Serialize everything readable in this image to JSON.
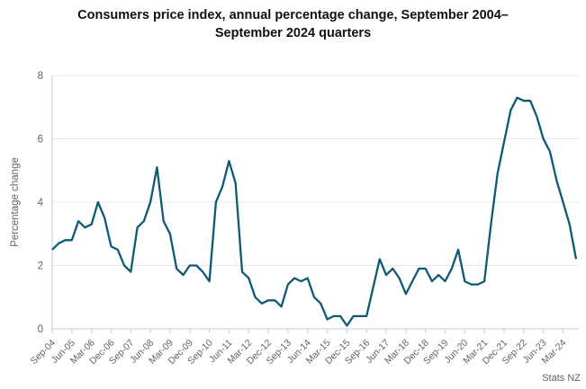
{
  "header": {
    "title": "Consumers price index, annual percentage change, September 2004–September 2024 quarters"
  },
  "footer": {
    "source": "Stats NZ"
  },
  "colors": {
    "line": "#0d5a76",
    "grid": "#e8e8e8",
    "axis": "#ccd3ec",
    "tick_text": "#636363",
    "title_text": "#111111"
  },
  "chart_data": {
    "type": "line",
    "title": "Consumers price index, annual percentage change, September 2004–September 2024 quarters",
    "xlabel": "",
    "ylabel": "Percentage change",
    "ylim": [
      0,
      8
    ],
    "yticks": [
      0,
      2,
      4,
      6,
      8
    ],
    "grid": "on",
    "legend": "none",
    "source": "Stats NZ",
    "x_label_every": 3,
    "x_tick_labels": [
      "Sep-04",
      "Jun-05",
      "Mar-06",
      "Dec-06",
      "Sep-07",
      "Jun-08",
      "Mar-09",
      "Dec-09",
      "Sep-10",
      "Jun-11",
      "Mar-12",
      "Dec-12",
      "Sep-13",
      "Jun-14",
      "Mar-15",
      "Dec-15",
      "Sep-16",
      "Jun-17",
      "Mar-18",
      "Dec-18",
      "Sep-19",
      "Jun-20",
      "Mar-21",
      "Dec-21",
      "Sep-22",
      "Jun-23",
      "Mar-24"
    ],
    "categories": [
      "Sep-04",
      "Dec-04",
      "Mar-05",
      "Jun-05",
      "Sep-05",
      "Dec-05",
      "Mar-06",
      "Jun-06",
      "Sep-06",
      "Dec-06",
      "Mar-07",
      "Jun-07",
      "Sep-07",
      "Dec-07",
      "Mar-08",
      "Jun-08",
      "Sep-08",
      "Dec-08",
      "Mar-09",
      "Jun-09",
      "Sep-09",
      "Dec-09",
      "Mar-10",
      "Jun-10",
      "Sep-10",
      "Dec-10",
      "Mar-11",
      "Jun-11",
      "Sep-11",
      "Dec-11",
      "Mar-12",
      "Jun-12",
      "Sep-12",
      "Dec-12",
      "Mar-13",
      "Jun-13",
      "Sep-13",
      "Dec-13",
      "Mar-14",
      "Jun-14",
      "Sep-14",
      "Dec-14",
      "Mar-15",
      "Jun-15",
      "Sep-15",
      "Dec-15",
      "Mar-16",
      "Jun-16",
      "Sep-16",
      "Dec-16",
      "Mar-17",
      "Jun-17",
      "Sep-17",
      "Dec-17",
      "Mar-18",
      "Jun-18",
      "Sep-18",
      "Dec-18",
      "Mar-19",
      "Jun-19",
      "Sep-19",
      "Dec-19",
      "Mar-20",
      "Jun-20",
      "Sep-20",
      "Dec-20",
      "Mar-21",
      "Jun-21",
      "Sep-21",
      "Dec-21",
      "Mar-22",
      "Jun-22",
      "Sep-22",
      "Dec-22",
      "Mar-23",
      "Jun-23",
      "Sep-23",
      "Dec-23",
      "Mar-24",
      "Jun-24",
      "Sep-24"
    ],
    "values": [
      2.5,
      2.7,
      2.8,
      2.8,
      3.4,
      3.2,
      3.3,
      4.0,
      3.5,
      2.6,
      2.5,
      2.0,
      1.8,
      3.2,
      3.4,
      4.0,
      5.1,
      3.4,
      3.0,
      1.9,
      1.7,
      2.0,
      2.0,
      1.8,
      1.5,
      4.0,
      4.5,
      5.3,
      4.6,
      1.8,
      1.6,
      1.0,
      0.8,
      0.9,
      0.9,
      0.7,
      1.4,
      1.6,
      1.5,
      1.6,
      1.0,
      0.8,
      0.3,
      0.4,
      0.4,
      0.1,
      0.4,
      0.4,
      0.4,
      1.3,
      2.2,
      1.7,
      1.9,
      1.6,
      1.1,
      1.5,
      1.9,
      1.9,
      1.5,
      1.7,
      1.5,
      1.9,
      2.5,
      1.5,
      1.4,
      1.4,
      1.5,
      3.3,
      4.9,
      5.9,
      6.9,
      7.3,
      7.2,
      7.2,
      6.7,
      6.0,
      5.6,
      4.7,
      4.0,
      3.3,
      2.2
    ]
  }
}
